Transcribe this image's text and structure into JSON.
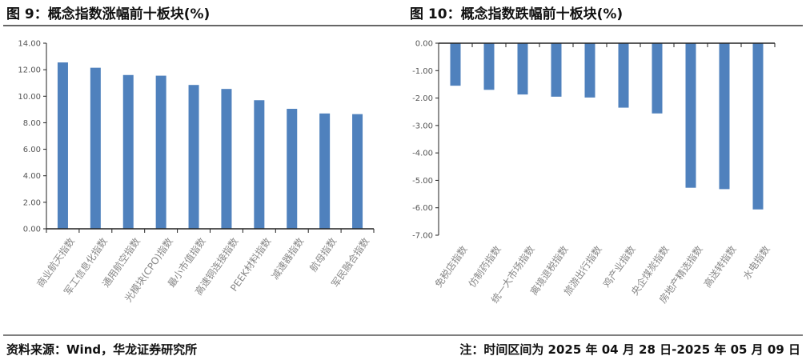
{
  "figures": {
    "left_title": "图 9：概念指数涨幅前十板块(%)",
    "right_title": "图 10：概念指数跌幅前十板块(%)"
  },
  "footer": {
    "source": "资料来源：Wind，华龙证券研究所",
    "note": "注：时间区间为 2025 年 04 月 28 日-2025 年 05 月 09 日"
  },
  "chart_data": [
    {
      "type": "bar",
      "title": "图 9：概念指数涨幅前十板块(%)",
      "categories": [
        "商业航天指数",
        "军工信息化指数",
        "通用航空指数",
        "光模块(CPO)指数",
        "最小市值指数",
        "高速铜连接指数",
        "PEEK材料指数",
        "减速器指数",
        "航母指数",
        "军民融合指数"
      ],
      "values": [
        12.55,
        12.15,
        11.6,
        11.55,
        10.85,
        10.55,
        9.7,
        9.05,
        8.7,
        8.65
      ],
      "ylim": [
        0,
        14
      ],
      "yticks": [
        "0.00",
        "2.00",
        "4.00",
        "6.00",
        "8.00",
        "10.00",
        "12.00",
        "14.00"
      ],
      "grid": false,
      "color": "#4f81bd"
    },
    {
      "type": "bar",
      "title": "图 10：概念指数跌幅前十板块(%)",
      "categories": [
        "免税店指数",
        "仿制药指数",
        "统一大市场指数",
        "离境退税指数",
        "旅游出行指数",
        "鸡产业指数",
        "央企煤炭指数",
        "房地产精选指数",
        "高送转指数",
        "水电指数"
      ],
      "values": [
        -1.55,
        -1.7,
        -1.87,
        -1.95,
        -1.98,
        -2.35,
        -2.56,
        -5.27,
        -5.32,
        -6.06
      ],
      "ylim": [
        -7,
        0
      ],
      "yticks": [
        "0.00",
        "-1.00",
        "-2.00",
        "-3.00",
        "-4.00",
        "-5.00",
        "-6.00",
        "-7.00"
      ],
      "grid": false,
      "color": "#4f81bd"
    }
  ]
}
